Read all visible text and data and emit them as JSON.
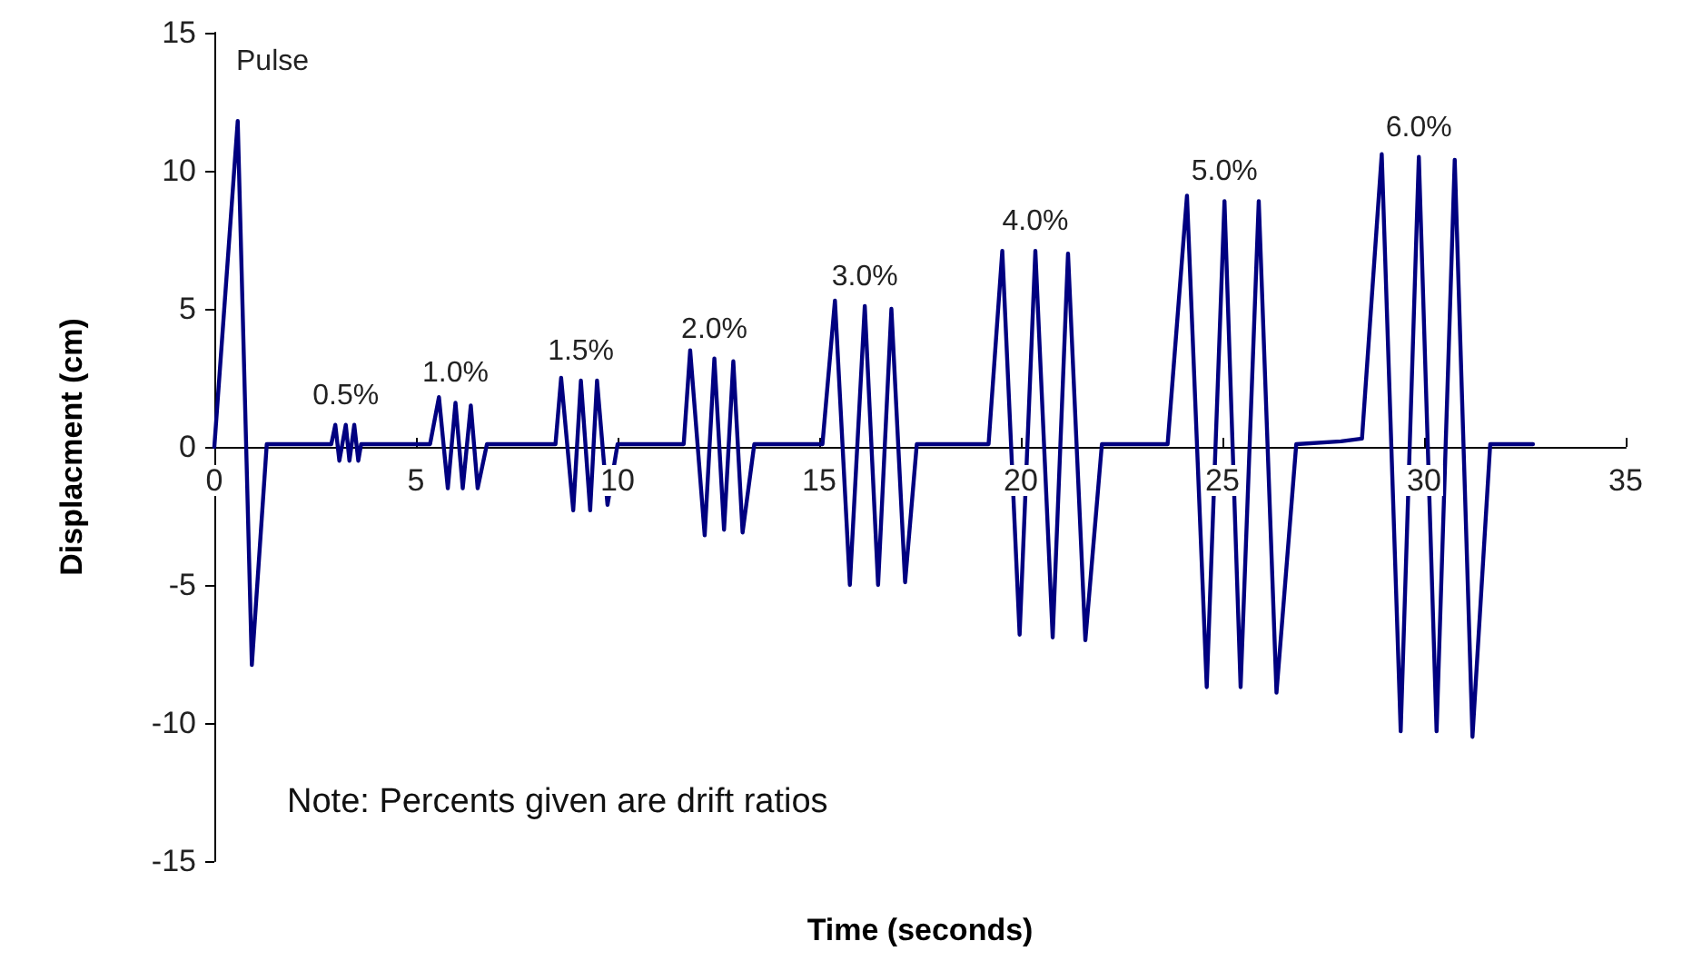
{
  "chart_data": {
    "type": "line",
    "xlabel": "Time (seconds)",
    "ylabel": "Displacment (cm)",
    "xlim": [
      0,
      35
    ],
    "xticks": [
      0,
      5,
      10,
      15,
      20,
      25,
      30,
      35
    ],
    "ylim": [
      -15,
      15
    ],
    "yticks": [
      -15,
      -10,
      -5,
      0,
      5,
      10,
      15
    ],
    "marker": "none",
    "line_style": "solid",
    "annotations": [
      "Pulse",
      {
        "text": "0.5%",
        "x": 3.26,
        "y": 0.8
      },
      {
        "text": "1.0%",
        "x": 5.98,
        "y": 1.6
      },
      {
        "text": "1.5%",
        "x": 9.09,
        "y": 2.4
      },
      {
        "text": "2.0%",
        "x": 12.4,
        "y": 3.2
      },
      {
        "text": "3.0%",
        "x": 16.13,
        "y": 5.1
      },
      {
        "text": "4.0%",
        "x": 20.36,
        "y": 7.1
      },
      {
        "text": "5.0%",
        "x": 25.05,
        "y": 8.9
      },
      {
        "text": "6.0%",
        "x": 29.87,
        "y": 10.5
      },
      "Note: Percents given are drift ratios"
    ],
    "series": [
      {
        "color": "#000080",
        "x": [
          0,
          0.58,
          0.93,
          1.3,
          2.9,
          3.0,
          3.1,
          3.26,
          3.35,
          3.47,
          3.57,
          3.64,
          5.35,
          5.57,
          5.79,
          5.98,
          6.16,
          6.36,
          6.53,
          6.76,
          8.46,
          8.6,
          8.9,
          9.09,
          9.32,
          9.49,
          9.75,
          10.0,
          11.64,
          11.8,
          12.16,
          12.4,
          12.64,
          12.87,
          13.1,
          13.39,
          15.08,
          15.39,
          15.76,
          16.13,
          16.46,
          16.79,
          17.13,
          17.42,
          19.2,
          19.54,
          19.97,
          20.36,
          20.79,
          21.17,
          21.6,
          22.01,
          23.64,
          24.12,
          24.61,
          25.05,
          25.45,
          25.9,
          26.34,
          26.83,
          27.94,
          28.46,
          28.95,
          29.42,
          29.87,
          30.31,
          30.76,
          31.2,
          31.64,
          32.7
        ],
        "values": [
          0,
          11.8,
          -7.9,
          0.1,
          0.1,
          0.8,
          -0.5,
          0.8,
          -0.5,
          0.8,
          -0.5,
          0.1,
          0.1,
          1.8,
          -1.5,
          1.6,
          -1.5,
          1.5,
          -1.5,
          0.1,
          0.1,
          2.5,
          -2.3,
          2.4,
          -2.3,
          2.4,
          -2.1,
          0.1,
          0.1,
          3.5,
          -3.2,
          3.2,
          -3.0,
          3.1,
          -3.1,
          0.1,
          0.1,
          5.3,
          -5.0,
          5.1,
          -5.0,
          5.0,
          -4.9,
          0.1,
          0.1,
          7.1,
          -6.8,
          7.1,
          -6.9,
          7.0,
          -7.0,
          0.1,
          0.1,
          9.1,
          -8.7,
          8.9,
          -8.7,
          8.9,
          -8.9,
          0.1,
          0.2,
          0.3,
          10.6,
          -10.3,
          10.5,
          -10.3,
          10.4,
          -10.5,
          0.1,
          0.1
        ]
      }
    ]
  }
}
